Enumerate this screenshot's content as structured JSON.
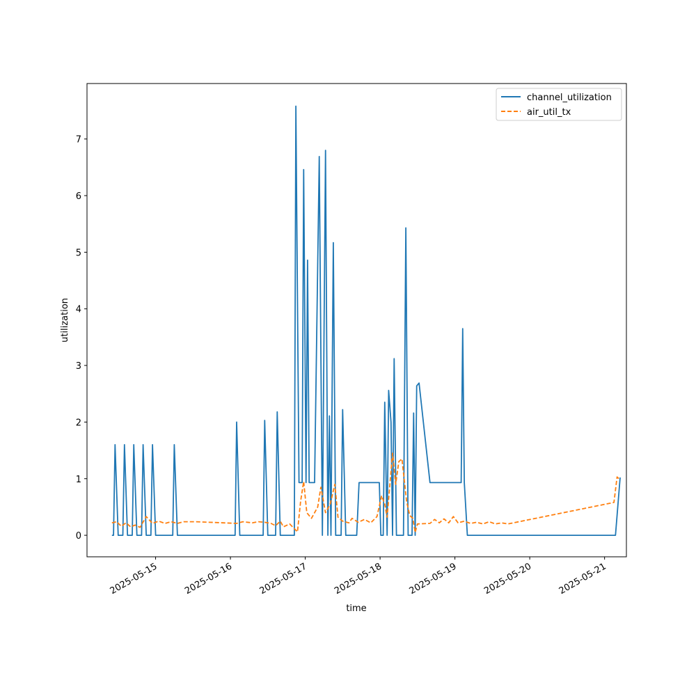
{
  "chart_data": {
    "type": "line",
    "title": "",
    "xlabel": "time",
    "ylabel": "utilization",
    "x_type": "date",
    "xlim": [
      "2025-05-14 02:00",
      "2025-05-21 07:00"
    ],
    "ylim": [
      -0.38,
      7.98
    ],
    "yticks": [
      0,
      1,
      2,
      3,
      4,
      5,
      6,
      7
    ],
    "xticks": [
      "2025-05-15",
      "2025-05-16",
      "2025-05-17",
      "2025-05-18",
      "2025-05-19",
      "2025-05-20",
      "2025-05-21"
    ],
    "grid": false,
    "legend_position": "top-right",
    "series": [
      {
        "name": "channel_utilization",
        "color": "#1f77b4",
        "style": "solid",
        "points": [
          [
            "2025-05-14 10:00",
            0
          ],
          [
            "2025-05-14 10:30",
            0
          ],
          [
            "2025-05-14 11:00",
            1.6
          ],
          [
            "2025-05-14 12:00",
            0
          ],
          [
            "2025-05-14 13:30",
            0
          ],
          [
            "2025-05-14 14:00",
            1.6
          ],
          [
            "2025-05-14 15:00",
            0
          ],
          [
            "2025-05-14 16:30",
            0
          ],
          [
            "2025-05-14 17:00",
            1.6
          ],
          [
            "2025-05-14 18:00",
            0
          ],
          [
            "2025-05-14 19:30",
            0
          ],
          [
            "2025-05-14 20:00",
            1.6
          ],
          [
            "2025-05-14 21:00",
            0
          ],
          [
            "2025-05-14 22:30",
            0
          ],
          [
            "2025-05-14 23:00",
            1.6
          ],
          [
            "2025-05-15 00:00",
            0
          ],
          [
            "2025-05-15 05:30",
            0
          ],
          [
            "2025-05-15 06:00",
            1.6
          ],
          [
            "2025-05-15 07:00",
            0
          ],
          [
            "2025-05-16 01:30",
            0
          ],
          [
            "2025-05-16 02:00",
            2.0
          ],
          [
            "2025-05-16 03:00",
            0
          ],
          [
            "2025-05-16 10:30",
            0
          ],
          [
            "2025-05-16 11:00",
            2.03
          ],
          [
            "2025-05-16 12:00",
            0
          ],
          [
            "2025-05-16 14:30",
            0
          ],
          [
            "2025-05-16 15:00",
            2.18
          ],
          [
            "2025-05-16 16:00",
            0
          ],
          [
            "2025-05-16 20:30",
            0
          ],
          [
            "2025-05-16 21:00",
            7.58
          ],
          [
            "2025-05-16 22:00",
            0.93
          ],
          [
            "2025-05-16 23:00",
            0.93
          ],
          [
            "2025-05-16 23:30",
            6.46
          ],
          [
            "2025-05-17 00:15",
            0.93
          ],
          [
            "2025-05-17 00:45",
            4.86
          ],
          [
            "2025-05-17 01:15",
            0.93
          ],
          [
            "2025-05-17 03:00",
            0.93
          ],
          [
            "2025-05-17 04:30",
            6.69
          ],
          [
            "2025-05-17 05:30",
            0
          ],
          [
            "2025-05-17 06:30",
            6.8
          ],
          [
            "2025-05-17 07:15",
            0
          ],
          [
            "2025-05-17 07:45",
            2.11
          ],
          [
            "2025-05-17 08:15",
            0
          ],
          [
            "2025-05-17 09:00",
            5.17
          ],
          [
            "2025-05-17 09:45",
            0
          ],
          [
            "2025-05-17 11:30",
            0
          ],
          [
            "2025-05-17 12:00",
            2.22
          ],
          [
            "2025-05-17 13:00",
            0
          ],
          [
            "2025-05-17 16:30",
            0
          ],
          [
            "2025-05-17 17:15",
            0.93
          ],
          [
            "2025-05-17 23:45",
            0.93
          ],
          [
            "2025-05-18 00:15",
            0
          ],
          [
            "2025-05-18 01:00",
            0
          ],
          [
            "2025-05-18 01:30",
            2.35
          ],
          [
            "2025-05-18 02:15",
            0
          ],
          [
            "2025-05-18 02:45",
            2.56
          ],
          [
            "2025-05-18 03:30",
            2.0
          ],
          [
            "2025-05-18 04:00",
            0
          ],
          [
            "2025-05-18 04:30",
            3.12
          ],
          [
            "2025-05-18 05:15",
            0
          ],
          [
            "2025-05-18 07:30",
            0
          ],
          [
            "2025-05-18 08:15",
            5.43
          ],
          [
            "2025-05-18 09:00",
            0
          ],
          [
            "2025-05-18 10:15",
            0
          ],
          [
            "2025-05-18 10:45",
            2.16
          ],
          [
            "2025-05-18 11:15",
            0
          ],
          [
            "2025-05-18 11:45",
            2.64
          ],
          [
            "2025-05-18 12:30",
            2.69
          ],
          [
            "2025-05-18 16:00",
            0.93
          ],
          [
            "2025-05-19 02:00",
            0.93
          ],
          [
            "2025-05-19 02:30",
            3.65
          ],
          [
            "2025-05-19 03:00",
            0.93
          ],
          [
            "2025-05-19 04:00",
            0
          ],
          [
            "2025-05-21 03:30",
            0
          ],
          [
            "2025-05-21 05:00",
            1.02
          ]
        ]
      },
      {
        "name": "air_util_tx",
        "color": "#ff7f0e",
        "style": "dashed",
        "points": [
          [
            "2025-05-14 10:00",
            0.22
          ],
          [
            "2025-05-14 11:30",
            0.24
          ],
          [
            "2025-05-14 13:00",
            0.16
          ],
          [
            "2025-05-14 14:30",
            0.22
          ],
          [
            "2025-05-14 16:00",
            0.15
          ],
          [
            "2025-05-14 17:30",
            0.18
          ],
          [
            "2025-05-14 19:00",
            0.14
          ],
          [
            "2025-05-14 21:00",
            0.33
          ],
          [
            "2025-05-14 23:00",
            0.21
          ],
          [
            "2025-05-15 01:00",
            0.25
          ],
          [
            "2025-05-15 03:00",
            0.21
          ],
          [
            "2025-05-15 05:00",
            0.24
          ],
          [
            "2025-05-15 07:00",
            0.21
          ],
          [
            "2025-05-15 09:00",
            0.24
          ],
          [
            "2025-05-15 13:00",
            0.24
          ],
          [
            "2025-05-16 02:00",
            0.21
          ],
          [
            "2025-05-16 04:00",
            0.24
          ],
          [
            "2025-05-16 07:00",
            0.22
          ],
          [
            "2025-05-16 09:00",
            0.24
          ],
          [
            "2025-05-16 11:00",
            0.23
          ],
          [
            "2025-05-16 13:00",
            0.21
          ],
          [
            "2025-05-16 14:30",
            0.17
          ],
          [
            "2025-05-16 16:00",
            0.25
          ],
          [
            "2025-05-16 17:00",
            0.15
          ],
          [
            "2025-05-16 19:00",
            0.2
          ],
          [
            "2025-05-16 21:30",
            0.06
          ],
          [
            "2025-05-16 22:30",
            0.6
          ],
          [
            "2025-05-16 23:30",
            0.95
          ],
          [
            "2025-05-17 00:30",
            0.4
          ],
          [
            "2025-05-17 02:00",
            0.3
          ],
          [
            "2025-05-17 04:00",
            0.5
          ],
          [
            "2025-05-17 05:00",
            0.85
          ],
          [
            "2025-05-17 06:30",
            0.4
          ],
          [
            "2025-05-17 08:00",
            0.55
          ],
          [
            "2025-05-17 09:30",
            0.9
          ],
          [
            "2025-05-17 10:30",
            0.32
          ],
          [
            "2025-05-17 12:00",
            0.25
          ],
          [
            "2025-05-17 14:00",
            0.22
          ],
          [
            "2025-05-17 15:00",
            0.3
          ],
          [
            "2025-05-17 17:00",
            0.23
          ],
          [
            "2025-05-17 19:00",
            0.28
          ],
          [
            "2025-05-17 21:00",
            0.22
          ],
          [
            "2025-05-17 23:00",
            0.33
          ],
          [
            "2025-05-18 00:30",
            0.7
          ],
          [
            "2025-05-18 01:30",
            0.55
          ],
          [
            "2025-05-18 02:15",
            0.32
          ],
          [
            "2025-05-18 03:00",
            0.8
          ],
          [
            "2025-05-18 04:00",
            1.45
          ],
          [
            "2025-05-18 05:00",
            0.9
          ],
          [
            "2025-05-18 06:00",
            1.3
          ],
          [
            "2025-05-18 07:00",
            1.35
          ],
          [
            "2025-05-18 08:30",
            0.6
          ],
          [
            "2025-05-18 09:30",
            0.35
          ],
          [
            "2025-05-18 10:30",
            0.3
          ],
          [
            "2025-05-18 11:15",
            0.05
          ],
          [
            "2025-05-18 12:00",
            0.2
          ],
          [
            "2025-05-18 16:00",
            0.21
          ],
          [
            "2025-05-18 17:30",
            0.28
          ],
          [
            "2025-05-18 19:00",
            0.22
          ],
          [
            "2025-05-18 20:30",
            0.29
          ],
          [
            "2025-05-18 22:00",
            0.22
          ],
          [
            "2025-05-18 23:30",
            0.33
          ],
          [
            "2025-05-19 01:00",
            0.22
          ],
          [
            "2025-05-19 03:00",
            0.25
          ],
          [
            "2025-05-19 05:00",
            0.21
          ],
          [
            "2025-05-19 07:00",
            0.23
          ],
          [
            "2025-05-19 09:00",
            0.2
          ],
          [
            "2025-05-19 11:00",
            0.24
          ],
          [
            "2025-05-19 13:00",
            0.2
          ],
          [
            "2025-05-19 15:00",
            0.22
          ],
          [
            "2025-05-19 17:00",
            0.2
          ],
          [
            "2025-05-21 03:00",
            0.58
          ],
          [
            "2025-05-21 04:00",
            1.03
          ],
          [
            "2025-05-21 05:00",
            0.98
          ]
        ]
      }
    ]
  }
}
